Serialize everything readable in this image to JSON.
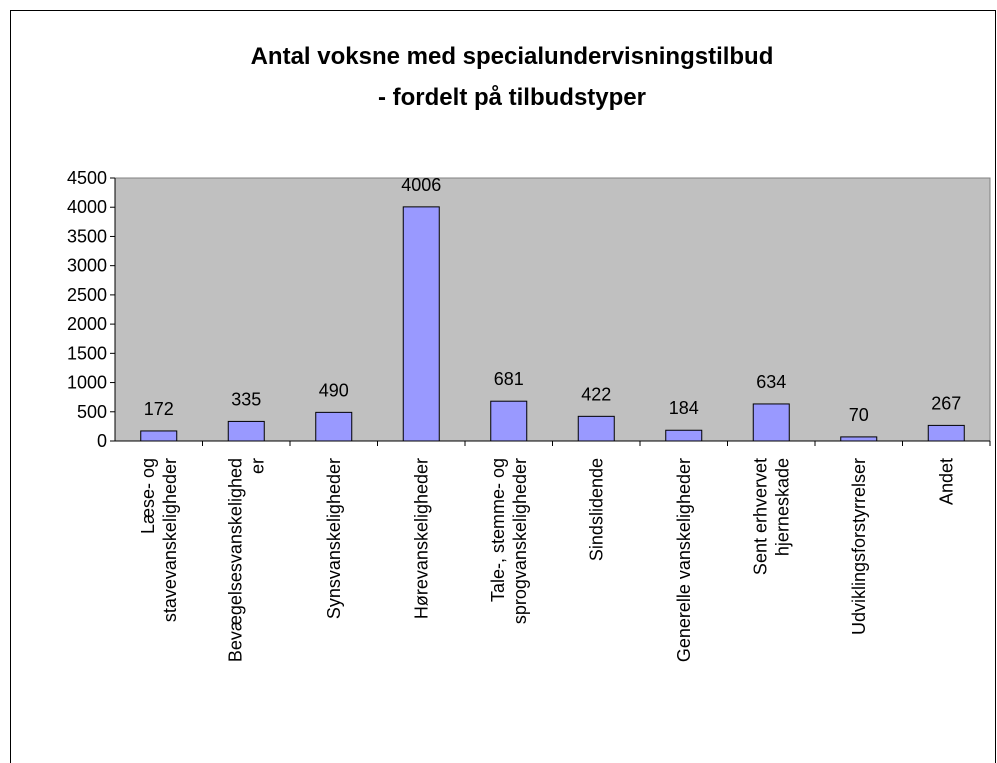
{
  "chart_data": {
    "type": "bar",
    "title": [
      "Antal voksne med specialundervisningstilbud",
      "- fordelt på tilbudstyper"
    ],
    "categories": [
      "Læse- og\nstavevanskeligheder",
      "Bevægelsesvanskelighed\ner",
      "Synsvanskeligheder",
      "Hørevanskeligheder",
      "Tale-, stemme- og\nsprogvanskeligheder",
      "Sindslidende",
      "Generelle vanskeligheder",
      "Sent erhvervet\nhjerneskade",
      "Udviklingsforstyrrelser",
      "Andet"
    ],
    "values": [
      172,
      335,
      490,
      4006,
      681,
      422,
      184,
      634,
      70,
      267
    ],
    "color": "#9999ff",
    "plot_background": "#c0c0c0",
    "ylim": [
      0,
      4500
    ],
    "yticks": [
      0,
      500,
      1000,
      1500,
      2000,
      2500,
      3000,
      3500,
      4000,
      4500
    ],
    "grid": false
  }
}
